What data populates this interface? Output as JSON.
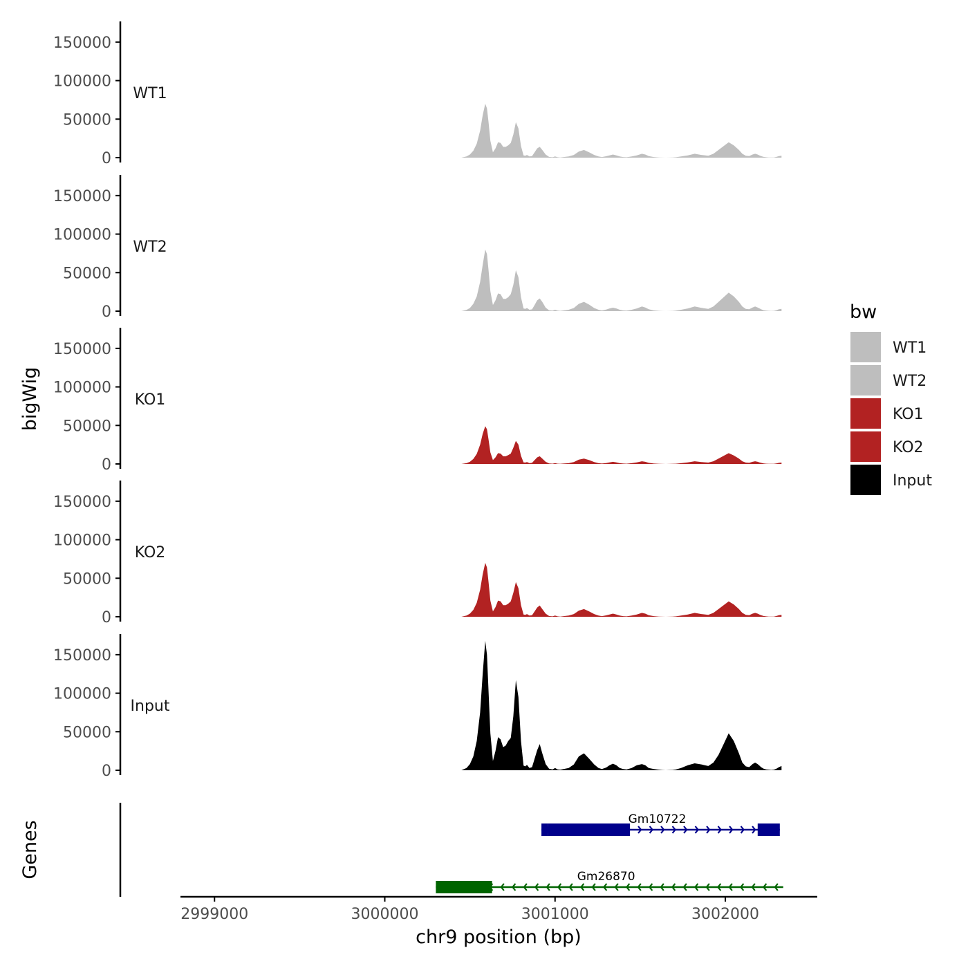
{
  "chart_data": {
    "type": "area",
    "title": "",
    "ylabel": "bigWig",
    "xlabel": "chr9 position (bp)",
    "genes_label": "Genes",
    "xlim": [
      2998800,
      3002540
    ],
    "ylim": [
      0,
      175000
    ],
    "y_ticks": [
      0,
      50000,
      100000,
      150000
    ],
    "x_ticks": [
      2999000,
      3000000,
      3001000,
      3002000
    ],
    "legend": {
      "title": "bw",
      "position": "right",
      "items": [
        {
          "label": "WT1",
          "color": "#bebebe"
        },
        {
          "label": "WT2",
          "color": "#bebebe"
        },
        {
          "label": "KO1",
          "color": "#b22222"
        },
        {
          "label": "KO2",
          "color": "#b22222"
        },
        {
          "label": "Input",
          "color": "#000000"
        }
      ]
    },
    "x": [
      3000450,
      3000480,
      3000500,
      3000520,
      3000540,
      3000560,
      3000575,
      3000590,
      3000600,
      3000610,
      3000620,
      3000635,
      3000650,
      3000665,
      3000680,
      3000695,
      3000710,
      3000725,
      3000740,
      3000755,
      3000770,
      3000785,
      3000800,
      3000815,
      3000825,
      3000835,
      3000850,
      3000865,
      3000880,
      3000895,
      3000910,
      3000925,
      3000945,
      3000965,
      3000985,
      3001000,
      3001015,
      3001030,
      3001050,
      3001080,
      3001110,
      3001140,
      3001170,
      3001200,
      3001230,
      3001255,
      3001275,
      3001300,
      3001320,
      3001340,
      3001360,
      3001380,
      3001400,
      3001420,
      3001450,
      3001480,
      3001510,
      3001530,
      3001550,
      3001580,
      3001610,
      3001630,
      3001650,
      3001670,
      3001690,
      3001710,
      3001740,
      3001780,
      3001820,
      3001860,
      3001900,
      3001930,
      3001960,
      3001990,
      3002020,
      3002050,
      3002080,
      3002100,
      3002120,
      3002140,
      3002160,
      3002175,
      3002190,
      3002200,
      3002210,
      3002225,
      3002240,
      3002255,
      3002270,
      3002285,
      3002300,
      3002315,
      3002330
    ],
    "series": [
      {
        "name": "WT1",
        "color": "#bebebe",
        "values": [
          0,
          1500,
          4000,
          9000,
          18000,
          35000,
          55000,
          70000,
          64000,
          45000,
          22000,
          7000,
          12000,
          20000,
          19000,
          14000,
          14000,
          16000,
          19000,
          30000,
          46000,
          38000,
          15000,
          3000,
          2500,
          3500,
          1500,
          2000,
          7000,
          12000,
          14000,
          10000,
          4000,
          1000,
          500,
          1500,
          500,
          300,
          800,
          1500,
          3500,
          8000,
          10000,
          7000,
          3500,
          1500,
          800,
          1800,
          3000,
          4000,
          3000,
          1500,
          800,
          500,
          1500,
          3000,
          5000,
          4000,
          2000,
          800,
          300,
          100,
          0,
          100,
          200,
          500,
          1500,
          3000,
          5000,
          3500,
          2500,
          5000,
          10000,
          15000,
          20000,
          16000,
          10000,
          5000,
          2500,
          2000,
          4000,
          5000,
          4000,
          3000,
          2000,
          1000,
          500,
          300,
          200,
          300,
          1000,
          2000,
          2500
        ]
      },
      {
        "name": "WT2",
        "color": "#bebebe",
        "values": [
          0,
          1500,
          4000,
          9500,
          19000,
          38000,
          60000,
          80000,
          74000,
          52000,
          26000,
          8000,
          14000,
          23000,
          22000,
          16000,
          16000,
          18000,
          22000,
          34000,
          53000,
          44000,
          18000,
          3500,
          3000,
          4000,
          1800,
          2300,
          8000,
          14000,
          16500,
          12000,
          4500,
          1200,
          600,
          1800,
          600,
          350,
          900,
          1800,
          4000,
          9500,
          12000,
          8500,
          4000,
          1800,
          900,
          2000,
          3500,
          4500,
          3500,
          1800,
          900,
          600,
          1800,
          3500,
          6000,
          4800,
          2400,
          900,
          350,
          120,
          0,
          120,
          250,
          600,
          1800,
          3500,
          6000,
          4200,
          3000,
          6000,
          12000,
          18000,
          24000,
          19000,
          12000,
          6000,
          3000,
          2400,
          4800,
          6000,
          4800,
          3600,
          2400,
          1200,
          600,
          350,
          250,
          350,
          1200,
          2400,
          3000
        ]
      },
      {
        "name": "KO1",
        "color": "#b22222",
        "values": [
          0,
          1000,
          2800,
          6500,
          13000,
          25000,
          39000,
          49000,
          45000,
          31000,
          15000,
          5000,
          8500,
          14000,
          13500,
          10000,
          10000,
          11500,
          13500,
          21000,
          30000,
          25000,
          10500,
          2100,
          1800,
          2500,
          1000,
          1400,
          5000,
          8500,
          10000,
          7000,
          2800,
          700,
          350,
          1000,
          350,
          200,
          550,
          1000,
          2500,
          5600,
          7000,
          5000,
          2500,
          1000,
          550,
          1200,
          2100,
          2800,
          2100,
          1000,
          550,
          350,
          1000,
          2100,
          3500,
          2800,
          1400,
          550,
          200,
          70,
          0,
          70,
          140,
          350,
          1000,
          2100,
          3500,
          2500,
          1800,
          3500,
          7000,
          10500,
          14000,
          11000,
          7000,
          3500,
          1800,
          1400,
          2800,
          3500,
          2800,
          2100,
          1400,
          700,
          350,
          200,
          140,
          200,
          700,
          1400,
          1800
        ]
      },
      {
        "name": "KO2",
        "color": "#b22222",
        "values": [
          0,
          1500,
          4000,
          9000,
          18000,
          35000,
          55000,
          70000,
          64000,
          44000,
          21000,
          7000,
          12500,
          21000,
          20000,
          15000,
          15000,
          17000,
          20000,
          31000,
          45000,
          37000,
          15000,
          3000,
          2500,
          3500,
          1500,
          2000,
          7000,
          12000,
          14500,
          10000,
          4000,
          1000,
          500,
          1500,
          500,
          300,
          800,
          1500,
          3500,
          8000,
          10000,
          7000,
          3500,
          1500,
          800,
          1800,
          3000,
          4000,
          3000,
          1500,
          800,
          500,
          1500,
          3000,
          5000,
          4000,
          2000,
          800,
          300,
          100,
          0,
          100,
          200,
          500,
          1500,
          3000,
          5000,
          3500,
          2500,
          5000,
          10000,
          15000,
          20000,
          16000,
          10000,
          5000,
          2500,
          2000,
          4000,
          5000,
          4000,
          3000,
          2000,
          1000,
          500,
          300,
          200,
          300,
          1000,
          2000,
          2500
        ]
      },
      {
        "name": "Input",
        "color": "#000000",
        "values": [
          0,
          3000,
          8000,
          18000,
          38000,
          75000,
          125000,
          168000,
          150000,
          100000,
          48000,
          12000,
          25000,
          43000,
          40000,
          30000,
          32000,
          38000,
          42000,
          70000,
          117000,
          95000,
          38000,
          6000,
          5000,
          7000,
          3000,
          4000,
          15000,
          26000,
          34000,
          22000,
          8000,
          2000,
          1000,
          3000,
          1000,
          600,
          1500,
          3000,
          7500,
          18000,
          22000,
          15000,
          7500,
          3000,
          1500,
          3500,
          6500,
          8500,
          6500,
          3000,
          1500,
          1000,
          3000,
          6500,
          8000,
          6500,
          3000,
          1500,
          600,
          200,
          0,
          200,
          400,
          1000,
          3000,
          6500,
          9000,
          7500,
          5500,
          10000,
          20000,
          34000,
          48000,
          38000,
          22000,
          10000,
          5000,
          4000,
          8000,
          10000,
          8000,
          6000,
          4000,
          2000,
          1000,
          600,
          400,
          600,
          2000,
          4000,
          5500
        ]
      }
    ],
    "genes": [
      {
        "name": "Gm10722",
        "strand": "+",
        "color": "#00008b",
        "start": 3000920,
        "end": 3002320,
        "exons": [
          [
            3000920,
            3000960
          ],
          [
            3000960,
            3001440
          ],
          [
            3002190,
            3002320
          ]
        ],
        "label_x": 3001600,
        "row": 1
      },
      {
        "name": "Gm26870",
        "strand": "-",
        "color": "#006400",
        "start": 3000300,
        "end": 3002340,
        "exons": [
          [
            3000300,
            3000630
          ]
        ],
        "label_x": 3001300,
        "row": 2
      }
    ]
  }
}
